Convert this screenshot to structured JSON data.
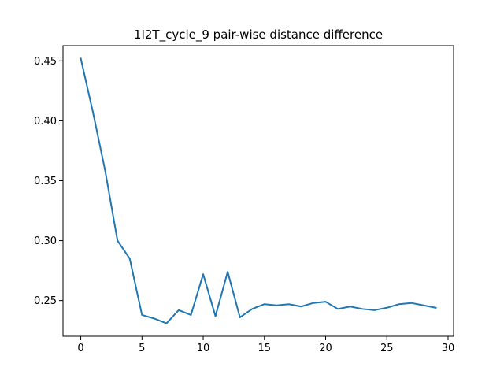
{
  "chart_data": {
    "type": "line",
    "title": "1I2T_cycle_9 pair-wise distance difference",
    "xlabel": "",
    "ylabel": "",
    "xlim": [
      -1.45,
      30.45
    ],
    "ylim": [
      0.2202,
      0.4627
    ],
    "grid": false,
    "xticks": [
      0,
      5,
      10,
      15,
      20,
      25,
      30
    ],
    "xtick_labels": [
      "0",
      "5",
      "10",
      "15",
      "20",
      "25",
      "30"
    ],
    "yticks": [
      0.25,
      0.3,
      0.35,
      0.4,
      0.45
    ],
    "ytick_labels": [
      "0.25",
      "0.30",
      "0.35",
      "0.40",
      "0.45"
    ],
    "series": [
      {
        "color": "#1f77b4",
        "x": [
          0,
          1,
          2,
          3,
          4,
          5,
          6,
          7,
          8,
          9,
          10,
          11,
          12,
          13,
          14,
          15,
          16,
          17,
          18,
          19,
          20,
          21,
          22,
          23,
          24,
          25,
          26,
          27,
          28,
          29
        ],
        "y": [
          0.452,
          0.407,
          0.358,
          0.3,
          0.285,
          0.238,
          0.235,
          0.231,
          0.242,
          0.238,
          0.272,
          0.237,
          0.274,
          0.236,
          0.243,
          0.247,
          0.246,
          0.247,
          0.245,
          0.248,
          0.249,
          0.243,
          0.245,
          0.243,
          0.242,
          0.244,
          0.247,
          0.248,
          0.246,
          0.244
        ]
      }
    ]
  }
}
